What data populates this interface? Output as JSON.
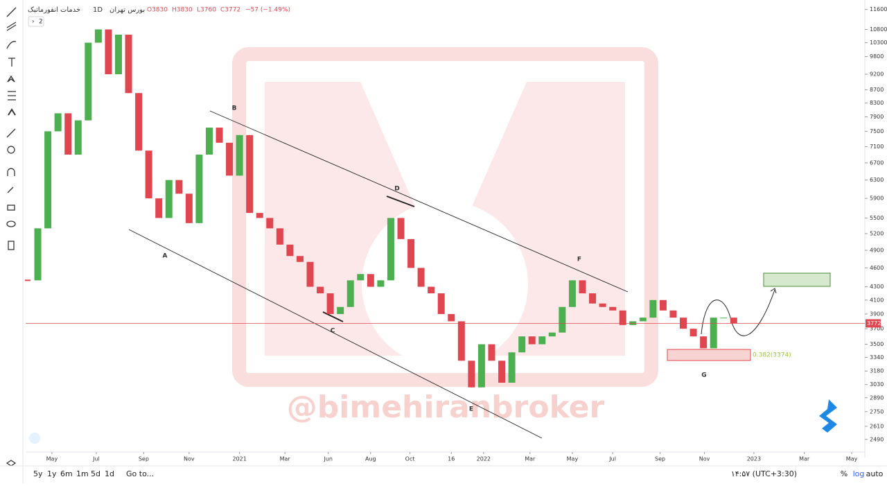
{
  "header": {
    "symbol": "خدمات انفورماتیک",
    "interval": "1D",
    "exchange": "بورس تهران",
    "ohlc": [
      "O3830",
      "H3830",
      "L3760",
      "C3772",
      "−57 (−1.49%)"
    ],
    "collapse_button": "2"
  },
  "chart_data": {
    "type": "candlestick",
    "log_scale": true,
    "up_color": "#4caf50",
    "down_color": "#e0464f",
    "values": [
      4400,
      5300,
      7500,
      8000,
      6900,
      7800,
      10300,
      10800,
      9200,
      10600,
      8600,
      7000,
      5900,
      5500,
      6300,
      6000,
      5400,
      6900,
      7600,
      7200,
      6400,
      7400,
      5600,
      5500,
      5300,
      5000,
      4800,
      4700,
      4300,
      4200,
      3900,
      4000,
      4400,
      4500,
      4300,
      4400,
      5500,
      5100,
      4600,
      4300,
      4200,
      3900,
      3800,
      3300,
      3000,
      3500,
      3300,
      3050,
      3400,
      3600,
      3500,
      3600,
      3650,
      4000,
      4400,
      4200,
      4050,
      4000,
      3950,
      3750,
      3800,
      3850,
      4100,
      3950,
      3850,
      3700,
      3600,
      3450,
      3850,
      3850,
      3772
    ],
    "xlim": [
      0,
      83
    ],
    "xticks": [
      {
        "value": 2.4,
        "label": "May"
      },
      {
        "value": 6.8,
        "label": "Jul"
      },
      {
        "value": 11.5,
        "label": "Sep"
      },
      {
        "value": 16,
        "label": "Nov"
      },
      {
        "value": 21,
        "label": "2021"
      },
      {
        "value": 25.5,
        "label": "Mar"
      },
      {
        "value": 29.8,
        "label": "Jun"
      },
      {
        "value": 34,
        "label": "Aug"
      },
      {
        "value": 37.9,
        "label": "Oct"
      },
      {
        "value": 42,
        "label": "16"
      },
      {
        "value": 45.2,
        "label": "2022"
      },
      {
        "value": 49.8,
        "label": "Mar"
      },
      {
        "value": 54,
        "label": "May"
      },
      {
        "value": 58,
        "label": "Jul"
      },
      {
        "value": 62.7,
        "label": "Sep"
      },
      {
        "value": 67.1,
        "label": "Nov"
      },
      {
        "value": 72,
        "label": "2023"
      },
      {
        "value": 77,
        "label": "Mar"
      },
      {
        "value": 81.7,
        "label": "May"
      }
    ],
    "ylim": [
      2380,
      12000
    ],
    "yticks": [
      11600,
      10800,
      10300,
      9800,
      9200,
      8700,
      8300,
      7900,
      7500,
      7100,
      6700,
      6300,
      5900,
      5500,
      5200,
      4900,
      4600,
      4300,
      4100,
      3900,
      3700,
      3500,
      3340,
      3180,
      3030,
      2890,
      2750,
      2610,
      2490
    ],
    "annotations": [
      "A",
      "B",
      "C",
      "D",
      "E",
      "F",
      "G"
    ],
    "fib_label": "0.382(3374)",
    "watermark": "@bimehiranbroker"
  },
  "bottom_bar": {
    "ranges": [
      "5y",
      "1y",
      "6m",
      "1m",
      "5d",
      "1d"
    ],
    "goto": "Go to...",
    "clock": "۱۴:۵۷ (UTC+3:30)",
    "percent": "%",
    "log": "log",
    "auto": "auto"
  }
}
